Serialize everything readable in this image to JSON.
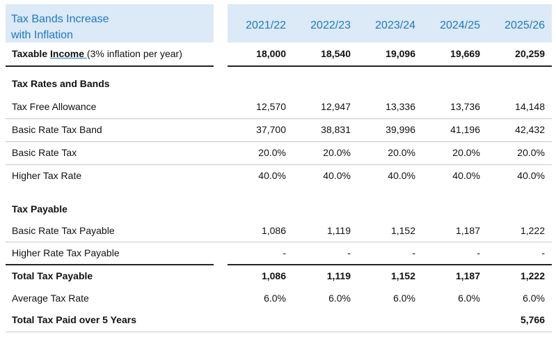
{
  "header": {
    "title_line1": "Tax Bands Increase",
    "title_line2": "with Inflation",
    "years": [
      "2021/22",
      "2022/23",
      "2023/24",
      "2024/25",
      "2025/26"
    ]
  },
  "taxable_income": {
    "label_main": "Taxable ",
    "label_link": "Income ",
    "label_note": "(3% inflation per year)",
    "values": [
      "18,000",
      "18,540",
      "19,096",
      "19,669",
      "20,259"
    ]
  },
  "section_rates": "Tax Rates and Bands",
  "rates": [
    {
      "label": "Tax Free Allowance",
      "values": [
        "12,570",
        "12,947",
        "13,336",
        "13,736",
        "14,148"
      ]
    },
    {
      "label": "Basic Rate Tax Band",
      "values": [
        "37,700",
        "38,831",
        "39,996",
        "41,196",
        "42,432"
      ]
    },
    {
      "label": "Basic Rate Tax",
      "values": [
        "20.0%",
        "20.0%",
        "20.0%",
        "20.0%",
        "20.0%"
      ]
    },
    {
      "label": "Higher Tax Rate",
      "values": [
        "40.0%",
        "40.0%",
        "40.0%",
        "40.0%",
        "40.0%"
      ]
    }
  ],
  "section_payable": "Tax Payable",
  "payable": [
    {
      "label": "Basic Rate Tax Payable",
      "values": [
        "1,086",
        "1,119",
        "1,152",
        "1,187",
        "1,222"
      ]
    },
    {
      "label": "Higher Rate Tax Payable",
      "values": [
        "-",
        "-",
        "-",
        "-",
        "-"
      ]
    }
  ],
  "total": {
    "label": "Total Tax Payable",
    "values": [
      "1,086",
      "1,119",
      "1,152",
      "1,187",
      "1,222"
    ]
  },
  "average": {
    "label": "Average Tax Rate",
    "values": [
      "6.0%",
      "6.0%",
      "6.0%",
      "6.0%",
      "6.0%"
    ]
  },
  "five_year": {
    "label": "Total Tax Paid over 5 Years",
    "value": "5,766"
  },
  "colors": {
    "header_bg": "#dce9f6",
    "header_text": "#1b79c4"
  }
}
